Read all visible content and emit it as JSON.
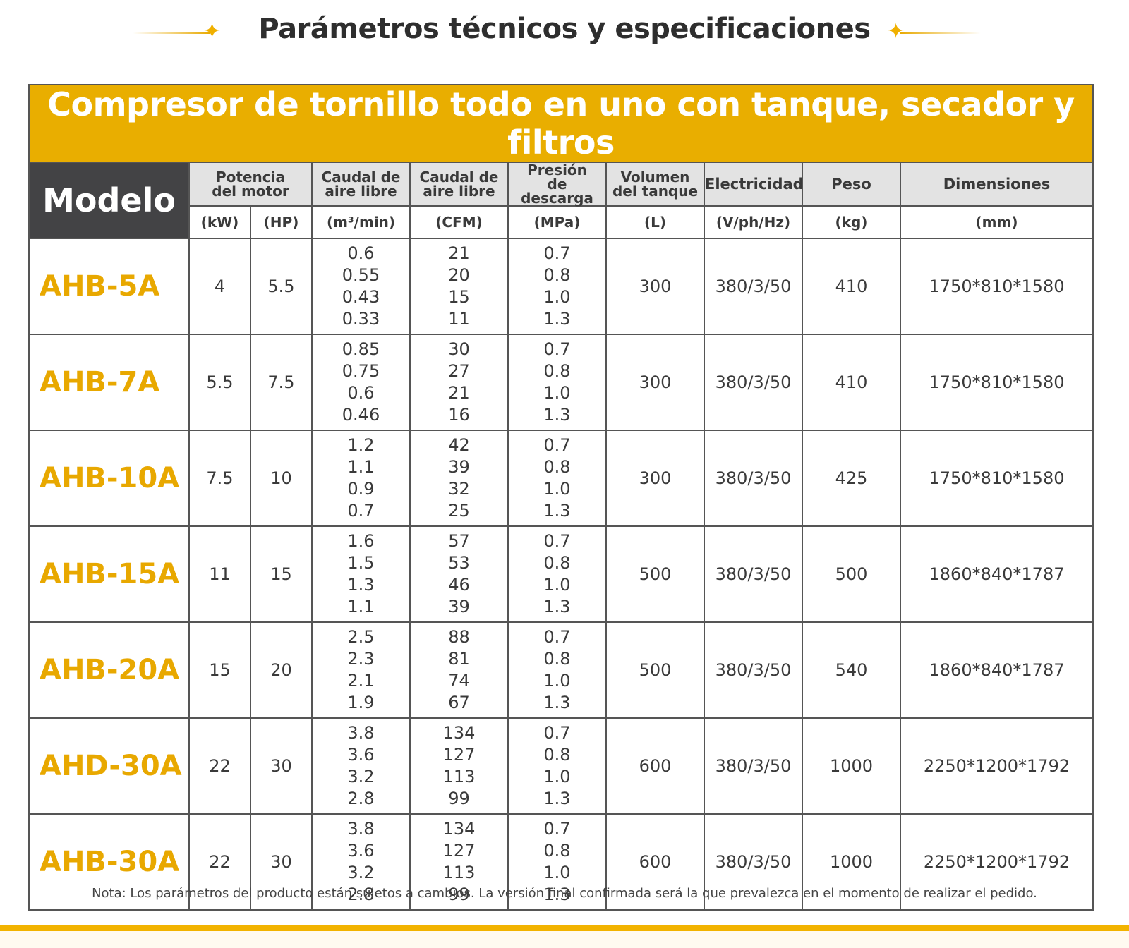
{
  "page": {
    "title": "Parámetros técnicos y especificaciones",
    "note": "Nota: Los parámetros del producto están sujetos a cambios. La versión final confirmada será la que prevalezca en el momento de realizar el pedido."
  },
  "table": {
    "banner": "Compresor de tornillo todo en uno con tanque, secador y filtros",
    "model_header": "Modelo",
    "headers": {
      "motor": [
        "Potencia",
        "del motor"
      ],
      "flow": [
        "Caudal de",
        "aire libre"
      ],
      "flow_cfm": [
        "Caudal de",
        "aire libre"
      ],
      "pressure": [
        "Presión",
        "de descarga"
      ],
      "tank": [
        "Volumen",
        "del tanque"
      ],
      "electricity": "Electricidad",
      "weight": "Peso",
      "dimensions": "Dimensiones"
    },
    "units": [
      "(kW)",
      "(HP)",
      "(m³/min)",
      "(CFM)",
      "(MPa)",
      "(L)",
      "(V/ph/Hz)",
      "(kg)",
      "(mm)"
    ],
    "rows": [
      {
        "model": "AHB-5A",
        "kw": "4",
        "hp": "5.5",
        "flow": [
          "0.6",
          "0.55",
          "0.43",
          "0.33"
        ],
        "cfm": [
          "21",
          "20",
          "15",
          "11"
        ],
        "mpa": [
          "0.7",
          "0.8",
          "1.0",
          "1.3"
        ],
        "tank": "300",
        "elec": "380/3/50",
        "weight": "410",
        "dims": "1750*810*1580"
      },
      {
        "model": "AHB-7A",
        "kw": "5.5",
        "hp": "7.5",
        "flow": [
          "0.85",
          "0.75",
          "0.6",
          "0.46"
        ],
        "cfm": [
          "30",
          "27",
          "21",
          "16"
        ],
        "mpa": [
          "0.7",
          "0.8",
          "1.0",
          "1.3"
        ],
        "tank": "300",
        "elec": "380/3/50",
        "weight": "410",
        "dims": "1750*810*1580"
      },
      {
        "model": "AHB-10A",
        "kw": "7.5",
        "hp": "10",
        "flow": [
          "1.2",
          "1.1",
          "0.9",
          "0.7"
        ],
        "cfm": [
          "42",
          "39",
          "32",
          "25"
        ],
        "mpa": [
          "0.7",
          "0.8",
          "1.0",
          "1.3"
        ],
        "tank": "300",
        "elec": "380/3/50",
        "weight": "425",
        "dims": "1750*810*1580"
      },
      {
        "model": "AHB-15A",
        "kw": "11",
        "hp": "15",
        "flow": [
          "1.6",
          "1.5",
          "1.3",
          "1.1"
        ],
        "cfm": [
          "57",
          "53",
          "46",
          "39"
        ],
        "mpa": [
          "0.7",
          "0.8",
          "1.0",
          "1.3"
        ],
        "tank": "500",
        "elec": "380/3/50",
        "weight": "500",
        "dims": "1860*840*1787"
      },
      {
        "model": "AHB-20A",
        "kw": "15",
        "hp": "20",
        "flow": [
          "2.5",
          "2.3",
          "2.1",
          "1.9"
        ],
        "cfm": [
          "88",
          "81",
          "74",
          "67"
        ],
        "mpa": [
          "0.7",
          "0.8",
          "1.0",
          "1.3"
        ],
        "tank": "500",
        "elec": "380/3/50",
        "weight": "540",
        "dims": "1860*840*1787"
      },
      {
        "model": "AHD-30A",
        "kw": "22",
        "hp": "30",
        "flow": [
          "3.8",
          "3.6",
          "3.2",
          "2.8"
        ],
        "cfm": [
          "134",
          "127",
          "113",
          "99"
        ],
        "mpa": [
          "0.7",
          "0.8",
          "1.0",
          "1.3"
        ],
        "tank": "600",
        "elec": "380/3/50",
        "weight": "1000",
        "dims": "2250*1200*1792"
      },
      {
        "model": "AHB-30A",
        "kw": "22",
        "hp": "30",
        "flow": [
          "3.8",
          "3.6",
          "3.2",
          "2.8"
        ],
        "cfm": [
          "134",
          "127",
          "113",
          "99"
        ],
        "mpa": [
          "0.7",
          "0.8",
          "1.0",
          "1.3"
        ],
        "tank": "600",
        "elec": "380/3/50",
        "weight": "1000",
        "dims": "2250*1200*1792"
      }
    ]
  },
  "colors": {
    "accent": "#e9ae00",
    "model_header_bg": "#434345",
    "header_bg": "#e3e3e3"
  },
  "icons": {
    "title_left": "sparkle-star-icon",
    "title_right": "sparkle-star-icon"
  }
}
